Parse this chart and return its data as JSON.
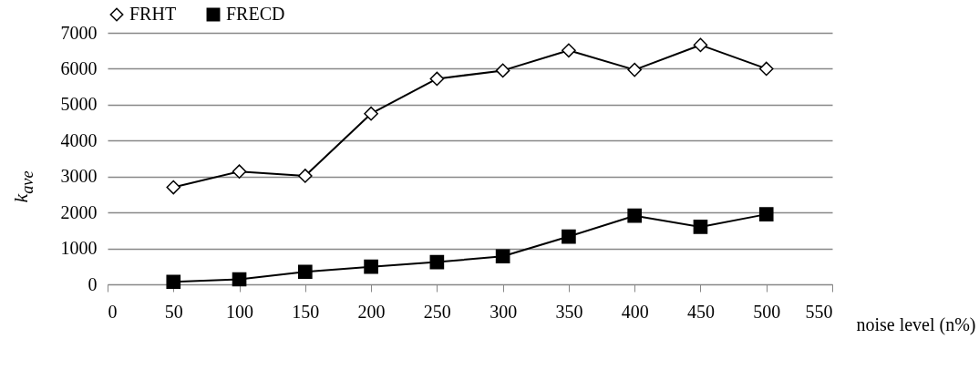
{
  "chart_data": {
    "type": "line",
    "xlabel": "noise level (n%)",
    "ylabel": "k$_{ave}$",
    "x": [
      50,
      100,
      150,
      200,
      250,
      300,
      350,
      400,
      450,
      500
    ],
    "series": [
      {
        "name": "FRHT",
        "color": "#ffffff",
        "marker": "diamond",
        "values": [
          2700,
          3140,
          3020,
          4750,
          5720,
          5950,
          6510,
          5970,
          6660,
          6000
        ]
      },
      {
        "name": "FRECD",
        "color": "#000000",
        "marker": "square",
        "values": [
          70,
          140,
          350,
          490,
          620,
          780,
          1330,
          1910,
          1600,
          1950
        ]
      }
    ],
    "xlim": [
      0,
      550
    ],
    "xticks": [
      0,
      50,
      100,
      150,
      200,
      250,
      300,
      350,
      400,
      450,
      500,
      550
    ],
    "ylim": [
      0,
      7000
    ],
    "yticks": [
      0,
      1000,
      2000,
      3000,
      4000,
      5000,
      6000,
      7000
    ],
    "grid": "y",
    "legend": "top",
    "line_style": "solid"
  }
}
